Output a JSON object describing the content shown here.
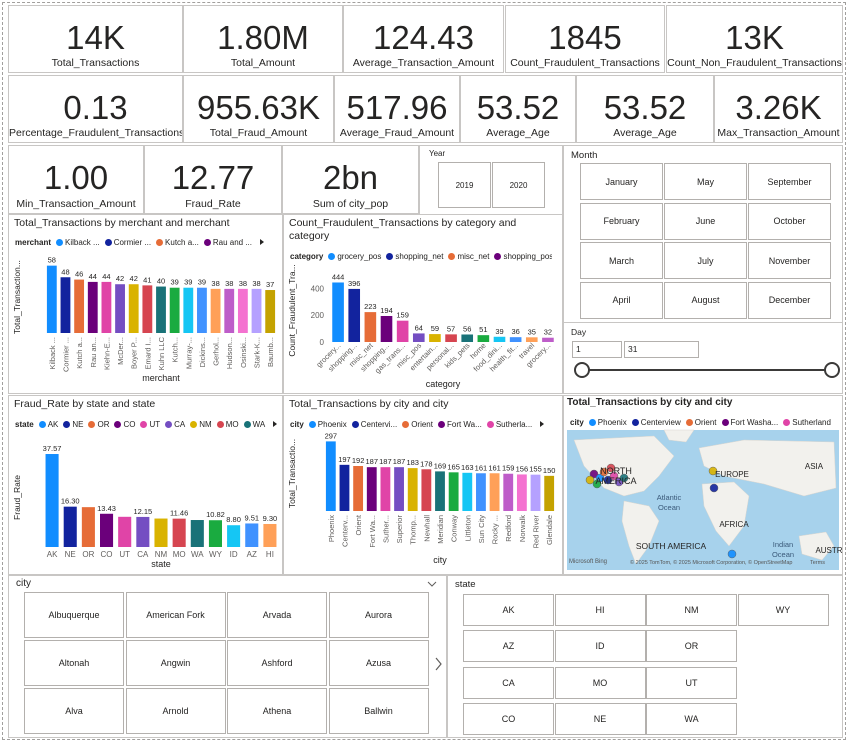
{
  "cards": [
    {
      "value": "14K",
      "label": "Total_Transactions"
    },
    {
      "value": "1.80M",
      "label": "Total_Amount"
    },
    {
      "value": "124.43",
      "label": "Average_Transaction_Amount"
    },
    {
      "value": "1845",
      "label": "Count_Fraudulent_Transactions"
    },
    {
      "value": "13K",
      "label": "Count_Non_Fraudulent_Transactions"
    },
    {
      "value": "0.13",
      "label": "Percentage_Fraudulent_Transactions"
    },
    {
      "value": "955.63K",
      "label": "Total_Fraud_Amount"
    },
    {
      "value": "517.96",
      "label": "Average_Fraud_Amount"
    },
    {
      "value": "53.52",
      "label": "Average_Age"
    },
    {
      "value": "53.52",
      "label": "Average_Age"
    },
    {
      "value": "3.26K",
      "label": "Max_Transaction_Amount"
    },
    {
      "value": "1.00",
      "label": "Min_Transaction_Amount"
    },
    {
      "value": "12.77",
      "label": "Fraud_Rate"
    },
    {
      "value": "2bn",
      "label": "Sum of city_pop"
    }
  ],
  "slicers": {
    "year": {
      "title": "Year",
      "items": [
        "2019",
        "2020"
      ]
    },
    "month": {
      "title": "Month",
      "items": [
        "January",
        "February",
        "March",
        "April",
        "May",
        "June",
        "July",
        "August",
        "September",
        "October",
        "November",
        "December"
      ]
    },
    "day": {
      "title": "Day",
      "from": "1",
      "to": "31"
    },
    "city": {
      "title": "city",
      "items": [
        "Albuquerque",
        "American Fork",
        "Arvada",
        "Aurora",
        "Altonah",
        "Angwin",
        "Ashford",
        "Azusa",
        "Alva",
        "Arnold",
        "Athena",
        "Ballwin"
      ]
    },
    "state": {
      "title": "state",
      "items": [
        "AK",
        "AZ",
        "CA",
        "CO",
        "HI",
        "ID",
        "MO",
        "NE",
        "NM",
        "OR",
        "UT",
        "WA",
        "WY"
      ]
    }
  },
  "chart_data": [
    {
      "type": "bar",
      "title": "Total_Transactions by merchant and merchant",
      "legend_title": "merchant",
      "legend": [
        "Kilback ...",
        "Cormier ...",
        "Kutch a...",
        "Rau and ..."
      ],
      "x_label": "merchant",
      "y_label": "Total_Transaction...",
      "categories": [
        "Kilback ...",
        "Cormier ...",
        "Kutch a...",
        "Rau an...",
        "Kiehn-E...",
        "McDer...",
        "Boyer P...",
        "Emard I...",
        "Kuhn LLC",
        "Kutch...",
        "Murray-...",
        "Dickins...",
        "Gerhol...",
        "Hudson...",
        "Osinski...",
        "Stark-K...",
        "Baumb..."
      ],
      "values": [
        58,
        48,
        46,
        44,
        44,
        42,
        42,
        41,
        40,
        39,
        39,
        39,
        38,
        38,
        38,
        38,
        37
      ],
      "colors": [
        "#118DFF",
        "#12239E",
        "#E66C37",
        "#6B007B",
        "#E044A7",
        "#744EC2",
        "#D9B300",
        "#D64550",
        "#197278",
        "#1AAB40",
        "#15C6F4",
        "#4092FF",
        "#FFA058",
        "#BE5DC9",
        "#F472D0",
        "#B5A1FF",
        "#C4A200"
      ],
      "ylim": [
        0,
        62
      ]
    },
    {
      "type": "bar",
      "title": "Count_Fraudulent_Transactions by category and category",
      "legend_title": "category",
      "legend": [
        "grocery_pos",
        "shopping_net",
        "misc_net",
        "shopping_pos"
      ],
      "x_label": "category",
      "y_label": "Count_Fraudulent_Tra...",
      "categories": [
        "grocery...",
        "shopping...",
        "misc_net",
        "shopping...",
        "gas_trans...",
        "misc_pos",
        "entertain...",
        "personal...",
        "kids_pets",
        "home",
        "food_dini...",
        "health_fit...",
        "travel",
        "grocery..."
      ],
      "values": [
        444,
        396,
        223,
        194,
        159,
        64,
        59,
        57,
        56,
        51,
        39,
        36,
        35,
        32
      ],
      "colors": [
        "#118DFF",
        "#12239E",
        "#E66C37",
        "#6B007B",
        "#E044A7",
        "#744EC2",
        "#D9B300",
        "#D64550",
        "#197278",
        "#1AAB40",
        "#15C6F4",
        "#4092FF",
        "#FFA058",
        "#BE5DC9"
      ],
      "ylim": [
        0,
        470
      ],
      "yticks": [
        0,
        200,
        400
      ]
    },
    {
      "type": "bar",
      "title": "Fraud_Rate by state and state",
      "legend_title": "state",
      "legend": [
        "AK",
        "NE",
        "OR",
        "CO",
        "UT",
        "CA",
        "NM",
        "MO",
        "WA"
      ],
      "x_label": "state",
      "y_label": "Fraud_Rate",
      "categories": [
        "AK",
        "NE",
        "OR",
        "CO",
        "UT",
        "CA",
        "NM",
        "MO",
        "WA",
        "WY",
        "ID",
        "AZ",
        "HI"
      ],
      "values": [
        37.57,
        16.3,
        16.1,
        13.43,
        12.2,
        12.15,
        11.5,
        11.46,
        10.9,
        10.82,
        8.8,
        9.51,
        9.3
      ],
      "value_labels": [
        "37.57",
        "16.30",
        null,
        "13.43",
        null,
        "12.15",
        null,
        "11.46",
        null,
        "10.82",
        "8.80",
        "9.51",
        "9.30"
      ],
      "colors": [
        "#118DFF",
        "#12239E",
        "#E66C37",
        "#6B007B",
        "#E044A7",
        "#744EC2",
        "#D9B300",
        "#D64550",
        "#197278",
        "#1AAB40",
        "#15C6F4",
        "#4092FF",
        "#FFA058"
      ],
      "ylim": [
        0,
        40
      ]
    },
    {
      "type": "bar",
      "title": "Total_Transactions by city and city",
      "legend_title": "city",
      "legend": [
        "Phoenix",
        "Centervi...",
        "Orient",
        "Fort Wa...",
        "Sutherla..."
      ],
      "x_label": "city",
      "y_label": "Total_Transactio...",
      "categories": [
        "Phoenix",
        "Centerv...",
        "Orient",
        "Fort Wa...",
        "Suther...",
        "Superior",
        "Thomp...",
        "Newhall",
        "Meridian",
        "Conway",
        "Littleton",
        "Sun City",
        "Rocky ...",
        "Redford",
        "Norwalk",
        "Red River",
        "Glendale"
      ],
      "values": [
        297,
        197,
        192,
        187,
        187,
        187,
        183,
        178,
        169,
        165,
        163,
        161,
        161,
        159,
        156,
        155,
        150
      ],
      "colors": [
        "#118DFF",
        "#12239E",
        "#E66C37",
        "#6B007B",
        "#E044A7",
        "#744EC2",
        "#D9B300",
        "#D64550",
        "#197278",
        "#1AAB40",
        "#15C6F4",
        "#4092FF",
        "#FFA058",
        "#BE5DC9",
        "#F472D0",
        "#B5A1FF",
        "#C4A200"
      ],
      "ylim": [
        0,
        320
      ]
    }
  ],
  "map": {
    "title": "Total_Transactions by city and city",
    "legend_title": "city",
    "legend": [
      {
        "name": "Phoenix",
        "color": "#118DFF"
      },
      {
        "name": "Centerview",
        "color": "#12239E"
      },
      {
        "name": "Orient",
        "color": "#E66C37"
      },
      {
        "name": "Fort Washa...",
        "color": "#6B007B"
      },
      {
        "name": "Sutherland",
        "color": "#E044A7"
      }
    ],
    "labels": [
      "NORTH AMERICA",
      "EUROPE",
      "ASIA",
      "Atlantic Ocean",
      "AFRICA",
      "SOUTH AMERICA",
      "Indian Ocean",
      "AUSTR"
    ],
    "logo": "Microsoft Bing",
    "attribution": "© 2025 TomTom, © 2025 Microsoft Corporation, © OpenStreetMap",
    "terms": "Terms"
  }
}
